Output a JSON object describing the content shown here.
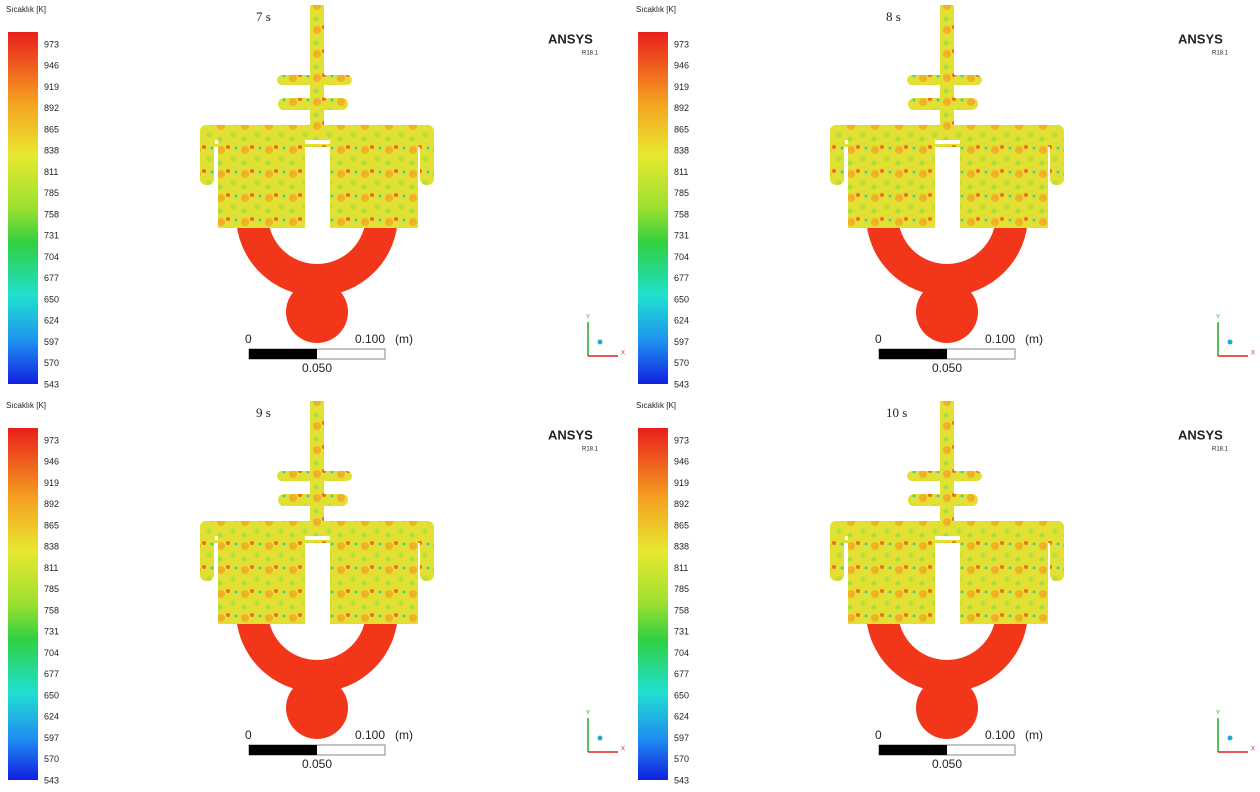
{
  "panels": [
    {
      "time": "7 s",
      "legend_title": "Sıcaklık [K]",
      "legend_labels": [
        "973",
        "946",
        "919",
        "892",
        "865",
        "838",
        "811",
        "785",
        "758",
        "731",
        "704",
        "677",
        "650",
        "624",
        "597",
        "570",
        "543"
      ],
      "brand": "ANSYS",
      "version": "R18.1",
      "scale": {
        "start": "0",
        "end": "0.100",
        "unit": "(m)",
        "mid": "0.050"
      },
      "axes": {
        "x": "X",
        "y": "Y"
      }
    },
    {
      "time": "8 s",
      "legend_title": "Sıcaklık [K]",
      "legend_labels": [
        "973",
        "946",
        "919",
        "892",
        "865",
        "838",
        "811",
        "785",
        "758",
        "731",
        "704",
        "677",
        "650",
        "624",
        "597",
        "570",
        "543"
      ],
      "brand": "ANSYS",
      "version": "R18.1",
      "scale": {
        "start": "0",
        "end": "0.100",
        "unit": "(m)",
        "mid": "0.050"
      },
      "axes": {
        "x": "X",
        "y": "Y"
      }
    },
    {
      "time": "9 s",
      "legend_title": "Sıcaklık [K]",
      "legend_labels": [
        "973",
        "946",
        "919",
        "892",
        "865",
        "838",
        "811",
        "785",
        "758",
        "731",
        "704",
        "677",
        "650",
        "624",
        "597",
        "570",
        "543"
      ],
      "brand": "ANSYS",
      "version": "R18.1",
      "scale": {
        "start": "0",
        "end": "0.100",
        "unit": "(m)",
        "mid": "0.050"
      },
      "axes": {
        "x": "X",
        "y": "Y"
      }
    },
    {
      "time": "10 s",
      "legend_title": "Sıcaklık [K]",
      "legend_labels": [
        "973",
        "946",
        "919",
        "892",
        "865",
        "838",
        "811",
        "785",
        "758",
        "731",
        "704",
        "677",
        "650",
        "624",
        "597",
        "570",
        "543"
      ],
      "brand": "ANSYS",
      "version": "R18.1",
      "scale": {
        "start": "0",
        "end": "0.100",
        "unit": "(m)",
        "mid": "0.050"
      },
      "axes": {
        "x": "X",
        "y": "Y"
      }
    }
  ]
}
